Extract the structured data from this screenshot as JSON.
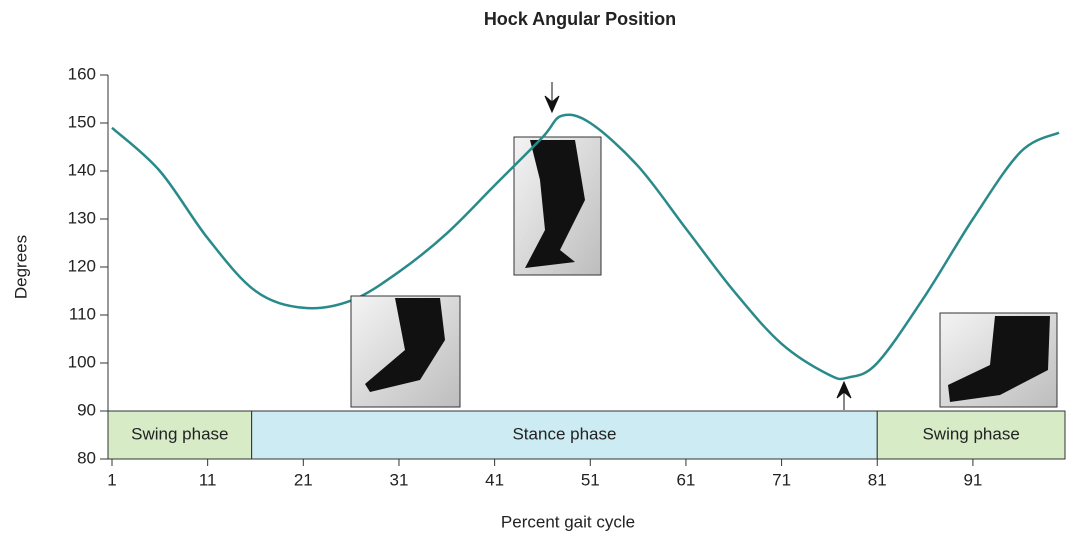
{
  "chart_data": {
    "type": "line",
    "title": "Hock Angular Position",
    "x_label": "Percent gait cycle",
    "y_label": "Degrees",
    "x": [
      1,
      6,
      11,
      16,
      21,
      26,
      31,
      36,
      41,
      46,
      48,
      51,
      56,
      61,
      66,
      71,
      76,
      78,
      81,
      86,
      91,
      96,
      100
    ],
    "values": [
      149,
      140,
      126,
      115,
      111.5,
      113,
      119,
      127,
      137,
      147,
      151.5,
      150,
      141,
      128,
      115,
      104,
      97.5,
      97,
      100,
      114,
      130,
      144,
      148
    ],
    "color": "#2a8a8a",
    "xlim": [
      1,
      100
    ],
    "xticks": [
      1,
      11,
      21,
      31,
      41,
      51,
      61,
      71,
      81,
      91
    ],
    "ylim": [
      80,
      160
    ],
    "yticks": [
      80,
      90,
      100,
      110,
      120,
      130,
      140,
      150,
      160
    ],
    "grid": false,
    "phases": [
      {
        "label": "Swing phase",
        "start": 1,
        "end": 15.6,
        "color": "#d6ebc6"
      },
      {
        "label": "Stance phase",
        "start": 15.6,
        "end": 81,
        "color": "#cdebf2"
      },
      {
        "label": "Swing phase",
        "start": 81,
        "end": 100,
        "color": "#d6ebc6"
      }
    ]
  }
}
